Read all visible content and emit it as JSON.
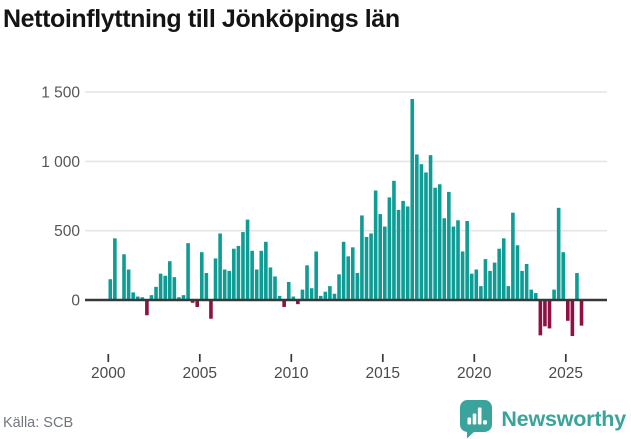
{
  "title": "Nettoinflyttning till Jönköpings län",
  "source": "Källa: SCB",
  "logo": {
    "text": "Newsworthy",
    "icon": "newsworthy-bubble-chart-icon",
    "color": "#3aa49c"
  },
  "chart_data": {
    "type": "bar",
    "title": "Nettoinflyttning till Jönköpings län",
    "x_start": "2000-Q1",
    "x_interval": "quarterly",
    "x_tick_years": [
      2000,
      2005,
      2010,
      2015,
      2020,
      2025
    ],
    "y_ticks": [
      0,
      500,
      1000,
      1500
    ],
    "y_tick_labels": [
      "0",
      "500",
      "1 000",
      "1 500"
    ],
    "ylim": [
      -310,
      1560
    ],
    "grid": true,
    "legend": "none",
    "colors": {
      "positive": "#0f9c94",
      "negative": "#8f1043",
      "axis": "#383838",
      "gridline": "#e6e6e6",
      "tick_text": "#4a4a4a"
    },
    "series": [
      {
        "name": "Nettoinflyttning",
        "values": [
          150,
          445,
          5,
          330,
          220,
          55,
          25,
          20,
          -110,
          35,
          95,
          190,
          175,
          280,
          165,
          20,
          35,
          410,
          -20,
          -50,
          345,
          195,
          -135,
          300,
          480,
          220,
          210,
          370,
          390,
          490,
          580,
          355,
          220,
          355,
          420,
          235,
          170,
          30,
          -50,
          130,
          25,
          -30,
          75,
          250,
          85,
          350,
          30,
          60,
          100,
          45,
          185,
          420,
          315,
          380,
          195,
          610,
          455,
          480,
          790,
          620,
          530,
          740,
          860,
          650,
          715,
          675,
          1450,
          1050,
          980,
          920,
          1045,
          810,
          835,
          590,
          780,
          530,
          575,
          350,
          570,
          190,
          220,
          100,
          295,
          210,
          270,
          370,
          445,
          100,
          630,
          395,
          210,
          260,
          75,
          50,
          -255,
          -190,
          -205,
          75,
          665,
          345,
          -150,
          -260,
          195,
          -185
        ]
      }
    ]
  }
}
